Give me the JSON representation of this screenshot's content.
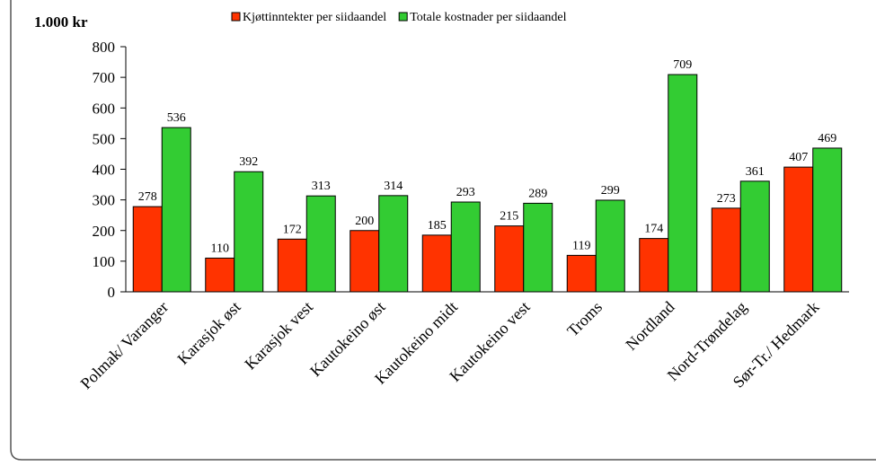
{
  "chart_data": {
    "type": "bar",
    "y_label": "1.000 kr",
    "categories": [
      "Polmak/ Varanger",
      "Karasjok øst",
      "Karasjok vest",
      "Kautokeino øst",
      "Kautokeino midt",
      "Kautokeino vest",
      "Troms",
      "Nordland",
      "Nord-Trøndelag",
      "Sør-Tr./  Hedmark"
    ],
    "series": [
      {
        "name": "Kjøttinntekter per siidaandel",
        "color": "#ff3300",
        "values": [
          278,
          110,
          172,
          200,
          185,
          215,
          119,
          174,
          273,
          407
        ]
      },
      {
        "name": "Totale kostnader per siidaandel",
        "color": "#33cc33",
        "values": [
          536,
          392,
          313,
          314,
          293,
          289,
          299,
          709,
          361,
          469
        ]
      }
    ],
    "ylim": [
      0,
      800
    ],
    "yticks": [
      0,
      100,
      200,
      300,
      400,
      500,
      600,
      700,
      800
    ],
    "legend": "top"
  }
}
